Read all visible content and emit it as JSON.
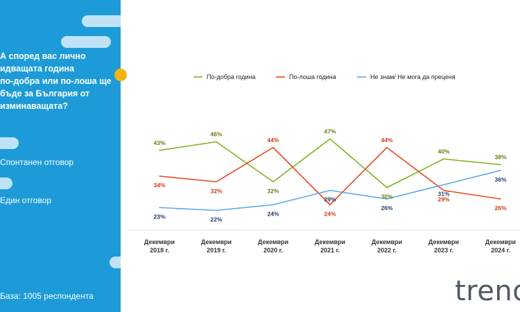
{
  "sidebar": {
    "question": "А според вас лично\nидващата година\nпо-добра или по-лоша ще\nбъде за България от\nизминаващата?",
    "answer_type_1": "Спонтанен отговор",
    "answer_type_2": "Един отговор",
    "base": "База:  1005 респондента"
  },
  "logo": {
    "text": "trend"
  },
  "colors": {
    "sidebar": "#1d9bd8",
    "accent_dot": "#f6b20f"
  },
  "chart_data": {
    "type": "line",
    "categories": [
      [
        "Декември",
        "2018 г."
      ],
      [
        "Декември",
        "2019 г."
      ],
      [
        "Декември",
        "2020 г."
      ],
      [
        "Декември",
        "2021 г."
      ],
      [
        "Декември",
        "2022 г."
      ],
      [
        "Декември",
        "2023 г."
      ],
      [
        "Декември",
        "2024 г."
      ]
    ],
    "series": [
      {
        "name": "По-добра година",
        "color": "#7fb11f",
        "label_color": "#6b7d12",
        "values": [
          43,
          46,
          32,
          47,
          30,
          40,
          38
        ],
        "labels": [
          "43%",
          "46%",
          "32%",
          "47%",
          "30%",
          "40%",
          "38%"
        ]
      },
      {
        "name": "По-лоша година",
        "color": "#e8491d",
        "label_color": "#d13a16",
        "values": [
          34,
          32,
          44,
          24,
          44,
          29,
          26
        ],
        "labels": [
          "34%",
          "32%",
          "44%",
          "24%",
          "44%",
          "29%",
          "26%"
        ]
      },
      {
        "name": "Не знам/ Не мога да преценя",
        "color": "#5aa9e0",
        "label_color": "#1f3b6b",
        "values": [
          23,
          22,
          24,
          29,
          26,
          31,
          36
        ],
        "labels": [
          "23%",
          "22%",
          "24%",
          "29%",
          "26%",
          "31%",
          "36%"
        ]
      }
    ],
    "legend_position": "top",
    "grid": false
  }
}
